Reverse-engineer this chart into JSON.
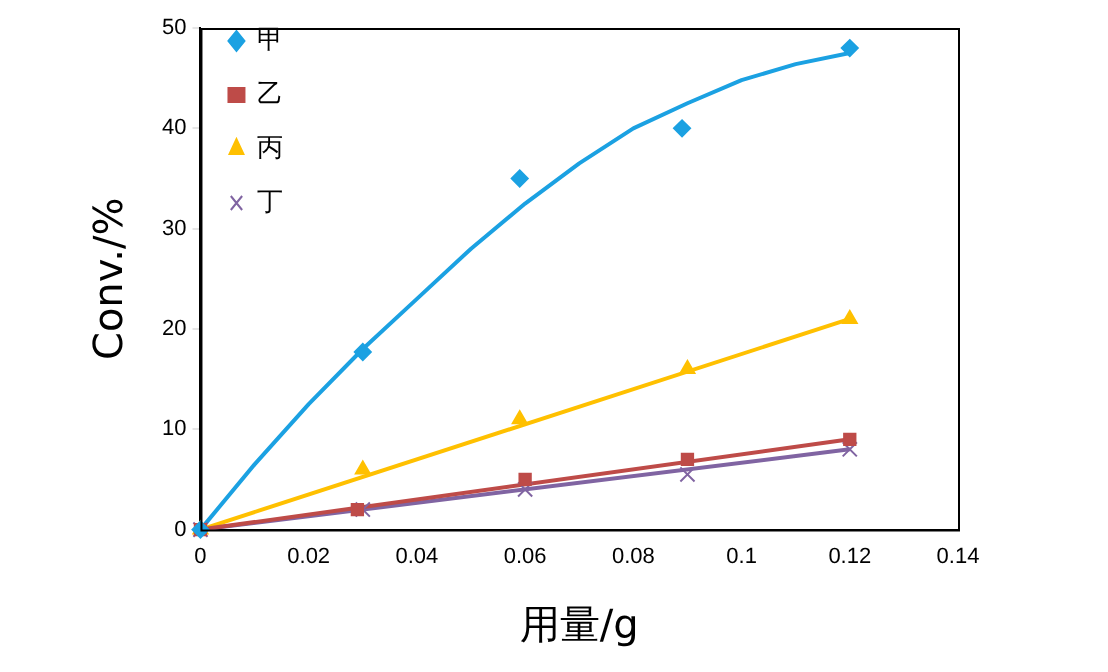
{
  "chart_data": {
    "type": "scatter",
    "xlabel": "用量/g",
    "ylabel": "Conv./%",
    "xlim": [
      0,
      0.14
    ],
    "ylim": [
      0,
      50
    ],
    "xticks": [
      0,
      0.02,
      0.04,
      0.06,
      0.08,
      0.1,
      0.12,
      0.14
    ],
    "yticks": [
      0,
      10,
      20,
      30,
      40,
      50
    ],
    "grid": false,
    "legend": "top left",
    "series": [
      {
        "name": "甲",
        "marker": "diamond",
        "color": "#1ba1e2",
        "x": [
          0,
          0.03,
          0.059,
          0.089,
          0.12
        ],
        "values": [
          0,
          17.7,
          35,
          40,
          48
        ]
      },
      {
        "name": "乙",
        "marker": "square",
        "color": "#be4b48",
        "x": [
          0,
          0.029,
          0.06,
          0.09,
          0.12
        ],
        "values": [
          0,
          2,
          5,
          7,
          9
        ]
      },
      {
        "name": "丙",
        "marker": "triangle",
        "color": "#ffc000",
        "x": [
          0,
          0.03,
          0.059,
          0.09,
          0.12
        ],
        "values": [
          0,
          6,
          11,
          16,
          21
        ]
      },
      {
        "name": "丁",
        "marker": "cross",
        "color": "#8064a2",
        "x": [
          0,
          0.03,
          0.06,
          0.09,
          0.12
        ],
        "values": [
          0,
          2,
          4,
          5.5,
          8
        ]
      },
      {
        "type": "line",
        "marker": "none",
        "line_style": "solid",
        "color": "#1ba1e2",
        "x": [
          0,
          0.01,
          0.02,
          0.03,
          0.04,
          0.05,
          0.06,
          0.07,
          0.08,
          0.09,
          0.1,
          0.11,
          0.12
        ],
        "values": [
          0,
          6.5,
          12.5,
          18,
          23,
          28,
          32.5,
          36.5,
          40,
          42.5,
          44.8,
          46.4,
          47.5
        ]
      },
      {
        "type": "line",
        "marker": "none",
        "line_style": "solid",
        "color": "#be4b48",
        "x": [
          0,
          0.12
        ],
        "values": [
          0,
          9
        ]
      },
      {
        "type": "line",
        "marker": "none",
        "line_style": "solid",
        "color": "#ffc000",
        "x": [
          0,
          0.12
        ],
        "values": [
          0,
          21
        ]
      },
      {
        "type": "line",
        "marker": "none",
        "line_style": "solid",
        "color": "#8064a2",
        "x": [
          0,
          0.12
        ],
        "values": [
          0,
          8
        ]
      }
    ]
  }
}
